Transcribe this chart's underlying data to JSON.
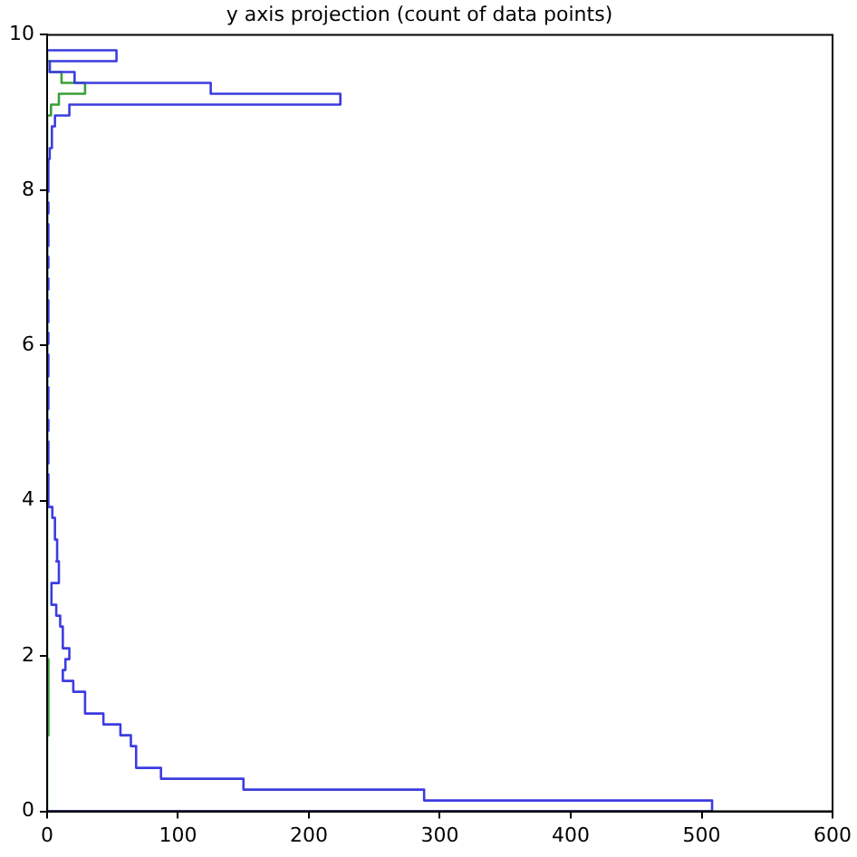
{
  "chart_data": {
    "type": "histogram",
    "orientation": "horizontal",
    "title": "y axis projection (count of data points)",
    "bins": [
      0,
      0.14,
      0.28,
      0.42,
      0.56,
      0.7,
      0.84,
      0.98,
      1.12,
      1.26,
      1.4,
      1.54,
      1.68,
      1.82,
      1.96,
      2.1,
      2.24,
      2.38,
      2.52,
      2.66,
      2.8,
      2.94,
      3.08,
      3.22,
      3.36,
      3.5,
      3.64,
      3.78,
      3.92,
      4.06,
      4.2,
      4.34,
      4.48,
      4.62,
      4.76,
      4.9,
      5.04,
      5.18,
      5.32,
      5.46,
      5.6,
      5.74,
      5.88,
      6.02,
      6.16,
      6.3,
      6.44,
      6.58,
      6.72,
      6.86,
      7,
      7.14,
      7.28,
      7.42,
      7.56,
      7.7,
      7.84,
      7.98,
      8.12,
      8.26,
      8.4,
      8.54,
      8.68,
      8.82,
      8.96,
      9.1,
      9.24,
      9.38,
      9.52,
      9.66,
      9.8
    ],
    "series": [
      {
        "color": "#3c3ce0",
        "values": [
          508,
          288,
          150,
          87,
          68,
          68,
          64,
          56,
          43,
          29,
          29,
          20,
          12,
          14,
          17,
          12,
          12,
          10,
          7,
          4,
          3,
          9,
          9,
          7,
          8,
          6,
          6,
          4,
          1,
          1,
          1,
          0,
          1,
          1,
          0,
          1,
          0,
          1,
          1,
          0,
          1,
          1,
          0,
          1,
          0,
          1,
          1,
          0,
          1,
          0,
          1,
          0,
          1,
          1,
          0,
          1,
          0,
          1,
          1,
          1,
          2,
          3,
          4,
          6,
          17,
          224,
          125,
          21,
          2,
          53
        ]
      },
      {
        "color": "#3a9f3a",
        "values": [
          0,
          0,
          0,
          0,
          0,
          0,
          0,
          1,
          1,
          1,
          1,
          1,
          1,
          1,
          0,
          0,
          0,
          0,
          0,
          0,
          0,
          0,
          0,
          0,
          0,
          0,
          0,
          0,
          0,
          0,
          0,
          0,
          0,
          0,
          0,
          0,
          0,
          0,
          0,
          0,
          0,
          0,
          0,
          0,
          0,
          0,
          0,
          0,
          0,
          0,
          0,
          0,
          0,
          0,
          0,
          0,
          0,
          0,
          0,
          0,
          0,
          0,
          0,
          0,
          3,
          9,
          29,
          11,
          2,
          0
        ]
      }
    ],
    "xlim": [
      0,
      600
    ],
    "xticks": [
      0,
      100,
      200,
      300,
      400,
      500,
      600
    ],
    "ylim": [
      0,
      10
    ],
    "yticks": [
      0,
      2,
      4,
      6,
      8,
      10
    ],
    "grid": false,
    "legend": false
  }
}
